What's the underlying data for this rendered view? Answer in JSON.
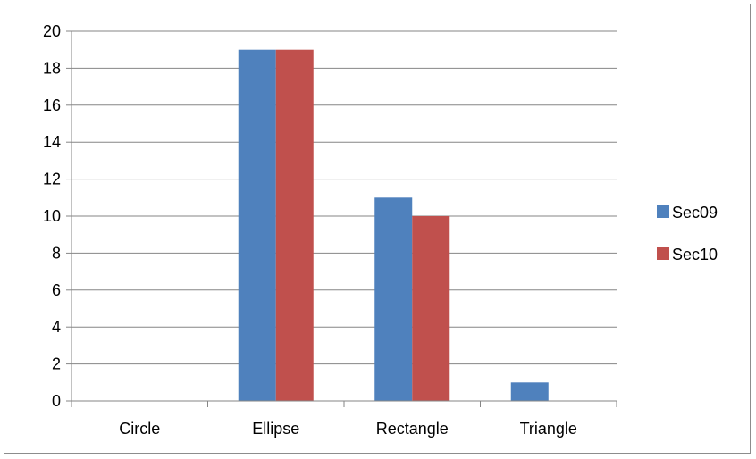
{
  "chart_data": {
    "type": "bar",
    "categories": [
      "Circle",
      "Ellipse",
      "Rectangle",
      "Triangle"
    ],
    "series": [
      {
        "name": "Sec09",
        "values": [
          0,
          19,
          11,
          1
        ],
        "color": "#4f81bd"
      },
      {
        "name": "Sec10",
        "values": [
          0,
          19,
          10,
          0
        ],
        "color": "#c0504d"
      }
    ],
    "ylim": [
      0,
      20
    ],
    "yticks": [
      0,
      2,
      4,
      6,
      8,
      10,
      12,
      14,
      16,
      18,
      20
    ],
    "grid": true,
    "legend_position": "right",
    "title": "",
    "xlabel": "",
    "ylabel": ""
  }
}
